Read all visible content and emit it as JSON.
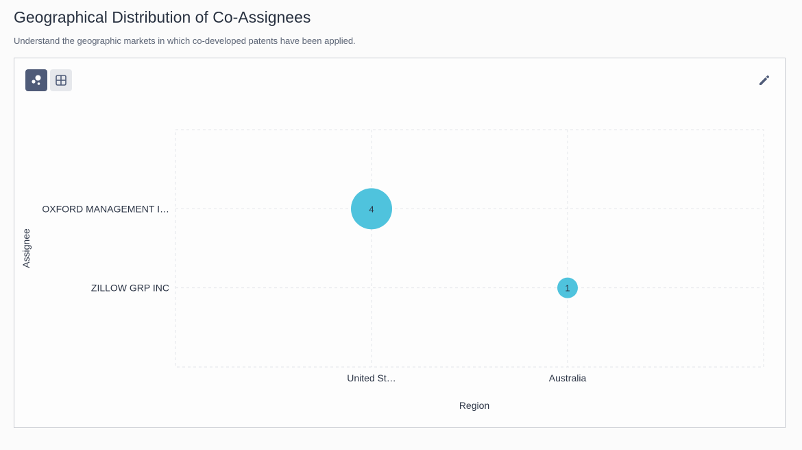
{
  "header": {
    "title": "Geographical Distribution of Co-Assignees",
    "subtitle": "Understand the geographic markets in which co-developed patents have been applied."
  },
  "toolbar": {
    "chart_view_icon": "bubble-chart-icon",
    "table_view_icon": "table-grid-icon",
    "edit_icon": "pencil-icon"
  },
  "colors": {
    "bubble": "#4fc3dd",
    "active_button": "#4f5b78",
    "grid": "#e3e5e9"
  },
  "chart_data": {
    "type": "scatter",
    "subtype": "bubble",
    "xlabel": "Region",
    "ylabel": "Assignee",
    "x_categories": [
      "United St…",
      "Australia"
    ],
    "y_categories": [
      "OXFORD MANAGEMENT I…",
      "ZILLOW GRP INC"
    ],
    "points": [
      {
        "x": "United St…",
        "y": "OXFORD MANAGEMENT I…",
        "value": 4,
        "label": "4"
      },
      {
        "x": "Australia",
        "y": "ZILLOW GRP INC",
        "value": 1,
        "label": "1"
      }
    ],
    "grid": true
  }
}
